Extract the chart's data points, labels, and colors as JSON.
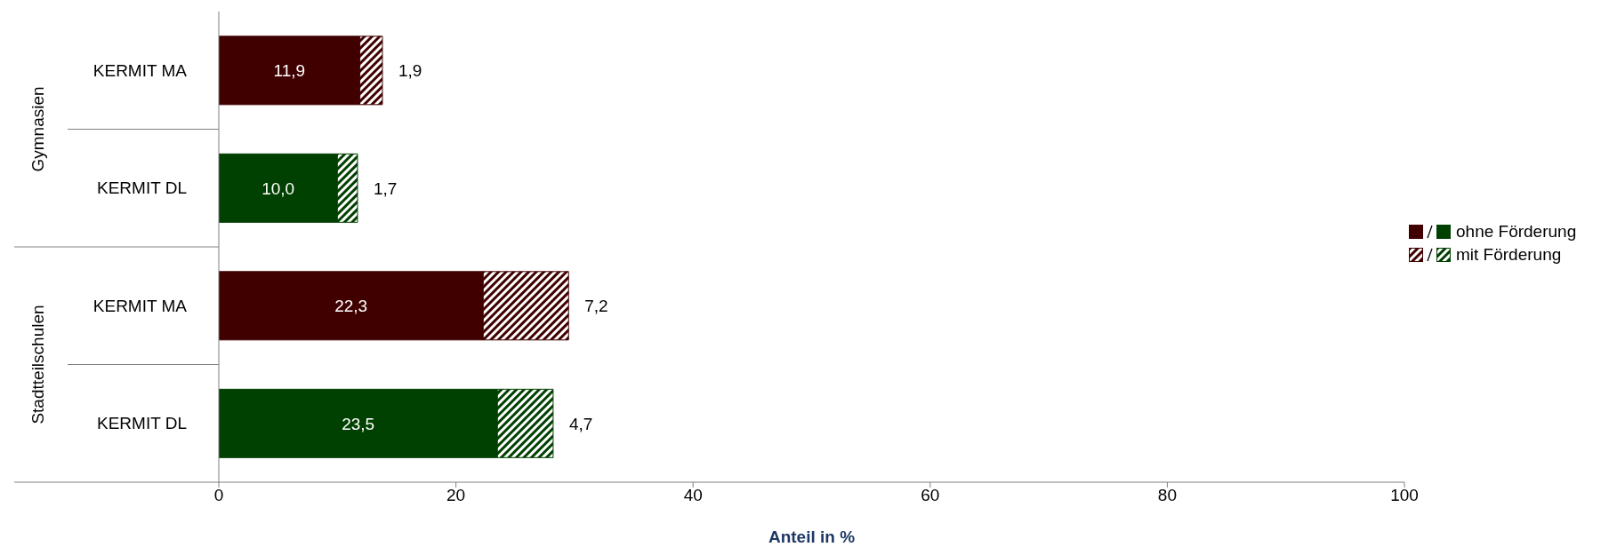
{
  "chart_data": {
    "type": "bar",
    "orientation": "horizontal",
    "stacked": true,
    "categories": [
      "KERMIT MA",
      "KERMIT DL",
      "KERMIT MA",
      "KERMIT DL"
    ],
    "series": [
      {
        "name": "ohne Förderung",
        "colors": [
          "#400000",
          "#004000",
          "#400000",
          "#004000"
        ],
        "values": [
          11.9,
          10.0,
          22.3,
          23.5
        ],
        "value_labels": [
          "11,9",
          "10,0",
          "22,3",
          "23,5"
        ]
      },
      {
        "name": "mit Förderung",
        "colors": [
          "#400000",
          "#004000",
          "#400000",
          "#004000"
        ],
        "values": [
          1.9,
          1.7,
          7.2,
          4.7
        ],
        "value_labels": [
          "1,9",
          "1,7",
          "7,2",
          "4,7"
        ]
      }
    ],
    "xlim": [
      0,
      100
    ],
    "xticks": [
      0,
      20,
      40,
      60,
      80,
      100
    ],
    "xlabel": "Anteil in %",
    "legend": "right",
    "grid": false,
    "annotations": [
      "Gymnasien",
      "Stadtteilschulen"
    ]
  }
}
